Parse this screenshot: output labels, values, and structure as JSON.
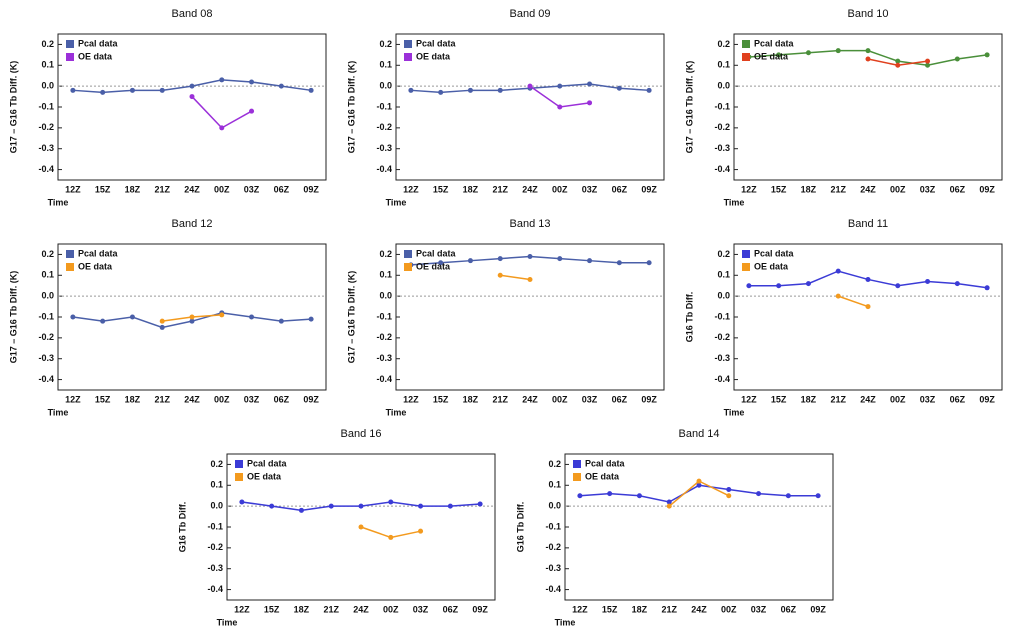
{
  "chart_data": [
    {
      "type": "line",
      "title": "Band 08",
      "x_label": "Time",
      "y_label": "G17 – G16 Tb Diff. (K)",
      "categories": [
        "12Z",
        "15Z",
        "18Z",
        "21Z",
        "24Z",
        "00Z",
        "03Z",
        "06Z",
        "09Z"
      ],
      "ylim": [
        -0.45,
        0.25
      ],
      "yticks": [
        -0.4,
        -0.3,
        -0.2,
        -0.1,
        {
          "value": 0,
          "label": "0.0"
        },
        0.1,
        0.2
      ],
      "series": [
        {
          "name": "Pcal data",
          "color": "#4a5fa8",
          "values": [
            -0.02,
            -0.03,
            -0.02,
            -0.02,
            0.0,
            0.03,
            0.02,
            0.0,
            -0.02
          ]
        },
        {
          "name": "OE data",
          "color": "#9b30d9",
          "values": [
            null,
            null,
            null,
            null,
            -0.05,
            -0.2,
            -0.12,
            null,
            null
          ]
        }
      ]
    },
    {
      "type": "line",
      "title": "Band 09",
      "x_label": "Time",
      "y_label": "G17 – G16 Tb Diff. (K)",
      "categories": [
        "12Z",
        "15Z",
        "18Z",
        "21Z",
        "24Z",
        "00Z",
        "03Z",
        "06Z",
        "09Z"
      ],
      "ylim": [
        -0.45,
        0.25
      ],
      "yticks": [
        -0.4,
        -0.3,
        -0.2,
        -0.1,
        {
          "value": 0,
          "label": "0.0"
        },
        0.1,
        0.2
      ],
      "series": [
        {
          "name": "Pcal data",
          "color": "#4a5fa8",
          "values": [
            -0.02,
            -0.03,
            -0.02,
            -0.02,
            -0.01,
            0.0,
            0.01,
            -0.01,
            -0.02
          ]
        },
        {
          "name": "OE data",
          "color": "#9b30d9",
          "values": [
            null,
            null,
            null,
            null,
            0.0,
            -0.1,
            -0.08,
            null,
            null
          ]
        }
      ]
    },
    {
      "type": "line",
      "title": "Band 10",
      "x_label": "Time",
      "y_label": "G17 – G16 Tb Diff. (K)",
      "categories": [
        "12Z",
        "15Z",
        "18Z",
        "21Z",
        "24Z",
        "00Z",
        "03Z",
        "06Z",
        "09Z"
      ],
      "ylim": [
        -0.45,
        0.25
      ],
      "yticks": [
        -0.4,
        -0.3,
        -0.2,
        -0.1,
        {
          "value": 0,
          "label": "0.0"
        },
        0.1,
        0.2
      ],
      "series": [
        {
          "name": "Pcal data",
          "color": "#4a8f3a",
          "values": [
            0.14,
            0.15,
            0.16,
            0.17,
            0.17,
            0.12,
            0.1,
            0.13,
            0.15
          ]
        },
        {
          "name": "OE data",
          "color": "#e0401e",
          "values": [
            null,
            null,
            null,
            null,
            0.13,
            0.1,
            0.12,
            null,
            null
          ]
        }
      ]
    },
    {
      "type": "line",
      "title": "Band 12",
      "x_label": "Time",
      "y_label": "G17 – G16 Tb Diff. (K)",
      "categories": [
        "12Z",
        "15Z",
        "18Z",
        "21Z",
        "24Z",
        "00Z",
        "03Z",
        "06Z",
        "09Z"
      ],
      "ylim": [
        -0.45,
        0.25
      ],
      "yticks": [
        -0.4,
        -0.3,
        -0.2,
        -0.1,
        {
          "value": 0,
          "label": "0.0"
        },
        0.1,
        0.2
      ],
      "series": [
        {
          "name": "Pcal data",
          "color": "#4a5fa8",
          "values": [
            -0.1,
            -0.12,
            -0.1,
            -0.15,
            -0.12,
            -0.08,
            -0.1,
            -0.12,
            -0.11
          ]
        },
        {
          "name": "OE data",
          "color": "#f39a1e",
          "values": [
            null,
            null,
            null,
            -0.12,
            -0.1,
            -0.09,
            null,
            null,
            null
          ]
        }
      ]
    },
    {
      "type": "line",
      "title": "Band 13",
      "x_label": "Time",
      "y_label": "G17 – G16 Tb Diff. (K)",
      "categories": [
        "12Z",
        "15Z",
        "18Z",
        "21Z",
        "24Z",
        "00Z",
        "03Z",
        "06Z",
        "09Z"
      ],
      "ylim": [
        -0.45,
        0.25
      ],
      "yticks": [
        -0.4,
        -0.3,
        -0.2,
        -0.1,
        {
          "value": 0,
          "label": "0.0"
        },
        0.1,
        0.2
      ],
      "series": [
        {
          "name": "Pcal data",
          "color": "#4a5fa8",
          "values": [
            0.15,
            0.16,
            0.17,
            0.18,
            0.19,
            0.18,
            0.17,
            0.16,
            0.16
          ]
        },
        {
          "name": "OE data",
          "color": "#f39a1e",
          "values": [
            null,
            null,
            null,
            0.1,
            0.08,
            null,
            null,
            null,
            null
          ]
        }
      ]
    },
    {
      "type": "line",
      "title": "Band 11",
      "x_label": "Time",
      "y_label": "G16 Tb Diff.",
      "categories": [
        "12Z",
        "15Z",
        "18Z",
        "21Z",
        "24Z",
        "00Z",
        "03Z",
        "06Z",
        "09Z"
      ],
      "ylim": [
        -0.45,
        0.25
      ],
      "yticks": [
        -0.4,
        -0.3,
        -0.2,
        -0.1,
        {
          "value": 0,
          "label": "0.0"
        },
        0.1,
        0.2
      ],
      "series": [
        {
          "name": "Pcal data",
          "color": "#3b3bd6",
          "values": [
            0.05,
            0.05,
            0.06,
            0.12,
            0.08,
            0.05,
            0.07,
            0.06,
            0.04
          ]
        },
        {
          "name": "OE data",
          "color": "#f39a1e",
          "values": [
            null,
            null,
            null,
            0.0,
            -0.05,
            null,
            null,
            null,
            null
          ]
        }
      ]
    },
    {
      "type": "line",
      "title": "Band 16",
      "x_label": "Time",
      "y_label": "G16 Tb Diff.",
      "categories": [
        "12Z",
        "15Z",
        "18Z",
        "21Z",
        "24Z",
        "00Z",
        "03Z",
        "06Z",
        "09Z"
      ],
      "ylim": [
        -0.45,
        0.25
      ],
      "yticks": [
        -0.4,
        -0.3,
        -0.2,
        -0.1,
        {
          "value": 0,
          "label": "0.0"
        },
        0.1,
        0.2
      ],
      "series": [
        {
          "name": "Pcal data",
          "color": "#3b3bd6",
          "values": [
            0.02,
            0.0,
            -0.02,
            0.0,
            0.0,
            0.02,
            0.0,
            0.0,
            0.01
          ]
        },
        {
          "name": "OE data",
          "color": "#f39a1e",
          "values": [
            null,
            null,
            null,
            null,
            -0.1,
            -0.15,
            -0.12,
            null,
            null
          ]
        }
      ]
    },
    {
      "type": "line",
      "title": "Band 14",
      "x_label": "Time",
      "y_label": "G16 Tb Diff.",
      "categories": [
        "12Z",
        "15Z",
        "18Z",
        "21Z",
        "24Z",
        "00Z",
        "03Z",
        "06Z",
        "09Z"
      ],
      "ylim": [
        -0.45,
        0.25
      ],
      "yticks": [
        -0.4,
        -0.3,
        -0.2,
        -0.1,
        {
          "value": 0,
          "label": "0.0"
        },
        0.1,
        0.2
      ],
      "series": [
        {
          "name": "Pcal data",
          "color": "#3b3bd6",
          "values": [
            0.05,
            0.06,
            0.05,
            0.02,
            0.1,
            0.08,
            0.06,
            0.05,
            0.05
          ]
        },
        {
          "name": "OE data",
          "color": "#f39a1e",
          "values": [
            null,
            null,
            null,
            0.0,
            0.12,
            0.05,
            null,
            null,
            null
          ]
        }
      ]
    }
  ]
}
